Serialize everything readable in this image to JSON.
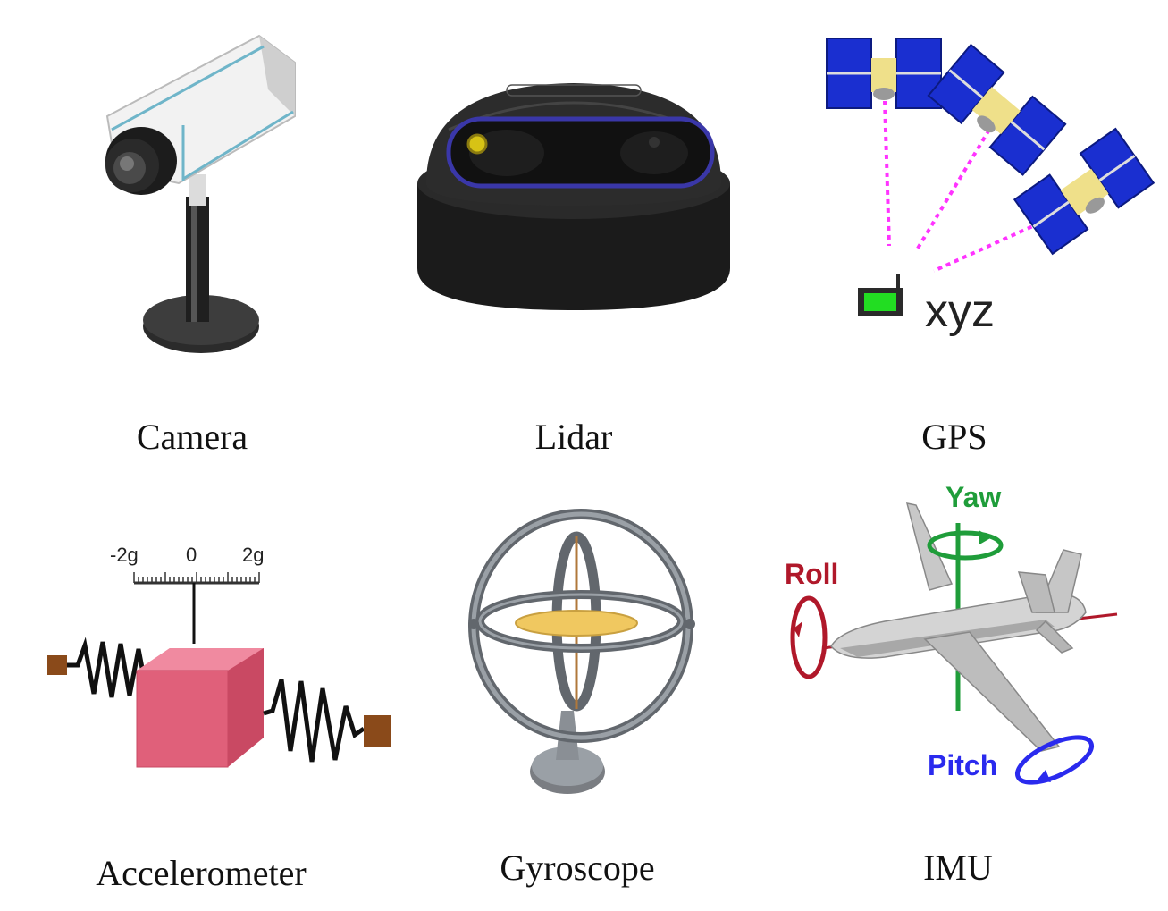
{
  "sensors": [
    {
      "label": "Camera"
    },
    {
      "label": "Lidar"
    },
    {
      "label": "GPS"
    },
    {
      "label": "Accelerometer"
    },
    {
      "label": "Gyroscope"
    },
    {
      "label": "IMU"
    }
  ],
  "gps": {
    "position_text": "xyz"
  },
  "accelerometer": {
    "scale_min": "-2g",
    "scale_mid": "0",
    "scale_max": "2g"
  },
  "imu": {
    "yaw": "Yaw",
    "roll": "Roll",
    "pitch": "Pitch"
  },
  "colors": {
    "satellite_panel": "#1a2fd0",
    "signal_line": "#ff33ff",
    "yaw": "#1f9d3a",
    "roll": "#b0182a",
    "pitch": "#2a2aee",
    "cube": "#e0607a",
    "spring_anchor": "#8a4a1a",
    "lidar_accent": "#3a37a8"
  }
}
